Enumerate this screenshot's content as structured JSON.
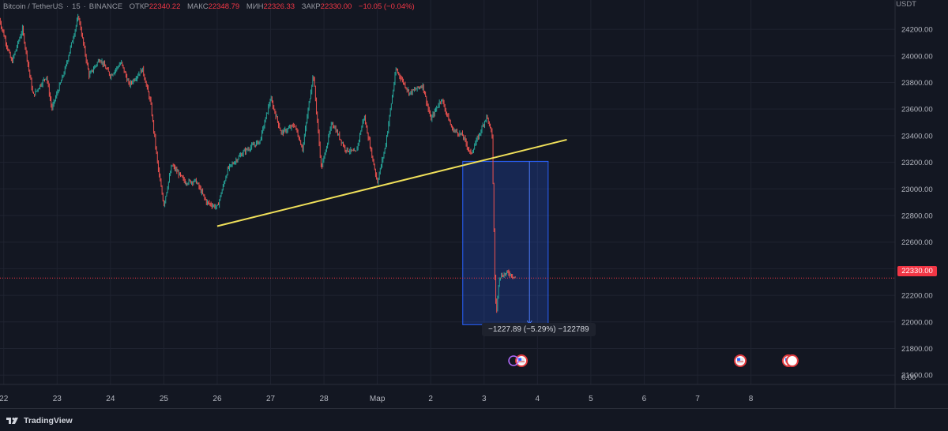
{
  "legend": {
    "symbol": "Bitcoin / TetherUS",
    "interval": "15",
    "exchange": "BINANCE",
    "open_label": "ОТКР",
    "open": "22340.22",
    "high_label": "МАКС",
    "high": "22348.79",
    "low_label": "МИН",
    "low": "22326.33",
    "close_label": "ЗАКР",
    "close": "22330.00",
    "change": "−10.05 (−0.04%)"
  },
  "axis": {
    "unit": "USDT"
  },
  "last_price_badge": "22330.00",
  "measure_label": "−1227.89 (−5.29%) −122789",
  "brand": "TradingView",
  "colors": {
    "background": "#131722",
    "up": "#26a69a",
    "down": "#ef5350",
    "trendline": "#f0e05a",
    "measure_fill": "#2962ff",
    "last_price": "#f23645"
  },
  "chart_data": {
    "type": "candlestick",
    "title": "Bitcoin / TetherUS, 15, BINANCE",
    "y_unit": "USDT",
    "y_ticks": [
      24200,
      24000,
      23800,
      23600,
      23400,
      23200,
      23000,
      22800,
      22600,
      22400,
      22200,
      22000,
      21800,
      21600
    ],
    "y_extra_tick": "0.00",
    "ylim": [
      21530,
      24420
    ],
    "x_tick_labels": [
      "22",
      "23",
      "24",
      "25",
      "26",
      "27",
      "28",
      "Мар",
      "2",
      "3",
      "4",
      "5",
      "6",
      "7",
      "8"
    ],
    "x_tick_days": [
      0,
      1,
      2,
      3,
      4,
      5,
      6,
      7,
      8,
      9,
      10,
      11,
      12,
      13,
      14
    ],
    "xlim": [
      -0.07,
      16.7
    ],
    "price_path": [
      [
        -0.1,
        24300
      ],
      [
        0.15,
        23950
      ],
      [
        0.35,
        24200
      ],
      [
        0.55,
        23700
      ],
      [
        0.8,
        23850
      ],
      [
        0.9,
        23600
      ],
      [
        1.15,
        23900
      ],
      [
        1.4,
        24300
      ],
      [
        1.6,
        23850
      ],
      [
        1.8,
        23980
      ],
      [
        2.0,
        23850
      ],
      [
        2.2,
        23950
      ],
      [
        2.35,
        23780
      ],
      [
        2.6,
        23900
      ],
      [
        2.75,
        23650
      ],
      [
        2.9,
        23130
      ],
      [
        3.0,
        22880
      ],
      [
        3.15,
        23180
      ],
      [
        3.4,
        23050
      ],
      [
        3.6,
        23060
      ],
      [
        3.8,
        22900
      ],
      [
        4.0,
        22860
      ],
      [
        4.2,
        23150
      ],
      [
        4.5,
        23280
      ],
      [
        4.8,
        23360
      ],
      [
        5.0,
        23680
      ],
      [
        5.2,
        23420
      ],
      [
        5.45,
        23480
      ],
      [
        5.6,
        23300
      ],
      [
        5.8,
        23870
      ],
      [
        5.95,
        23150
      ],
      [
        6.15,
        23500
      ],
      [
        6.4,
        23300
      ],
      [
        6.6,
        23270
      ],
      [
        6.75,
        23550
      ],
      [
        7.0,
        23050
      ],
      [
        7.15,
        23320
      ],
      [
        7.35,
        23900
      ],
      [
        7.6,
        23720
      ],
      [
        7.85,
        23780
      ],
      [
        8.0,
        23520
      ],
      [
        8.2,
        23680
      ],
      [
        8.4,
        23450
      ],
      [
        8.6,
        23400
      ],
      [
        8.75,
        23260
      ],
      [
        8.9,
        23400
      ],
      [
        9.05,
        23550
      ],
      [
        9.15,
        23400
      ],
      [
        9.2,
        22350
      ],
      [
        9.23,
        22050
      ],
      [
        9.28,
        22340
      ],
      [
        9.45,
        22370
      ],
      [
        9.6,
        22330
      ]
    ],
    "trendline": {
      "from": [
        4.0,
        22720
      ],
      "to": [
        10.55,
        23370
      ]
    },
    "measure": {
      "x_start": 8.6,
      "x_end": 10.2,
      "y_top": 23207,
      "y_bottom": 21979,
      "arrow_x": 9.85
    },
    "last_price": 22330.0,
    "event_markers": [
      9.7,
      13.8,
      14.7
    ]
  }
}
